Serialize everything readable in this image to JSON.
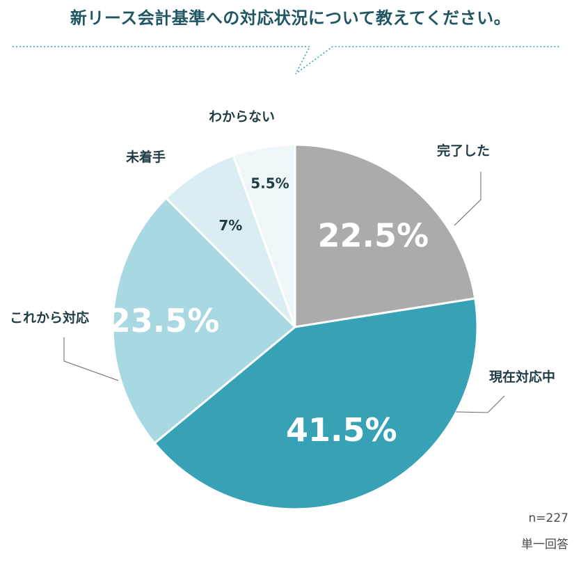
{
  "title": "新リース会計基準への対応状況について教えてください。",
  "footnote": {
    "n": "n=227",
    "answer_type": "単一回答"
  },
  "chart_data": {
    "type": "pie",
    "categories": [
      "完了した",
      "現在対応中",
      "これから対応",
      "未着手",
      "わからない"
    ],
    "values": [
      22.5,
      41.5,
      23.5,
      7,
      5.5
    ],
    "value_labels": [
      "22.5%",
      "41.5%",
      "23.5%",
      "7%",
      "5.5%"
    ],
    "colors": [
      "#ababab",
      "#37a1b5",
      "#a8d8e2",
      "#d9edf2",
      "#eef6f9"
    ],
    "start_angle": "12 o'clock",
    "direction": "clockwise"
  }
}
